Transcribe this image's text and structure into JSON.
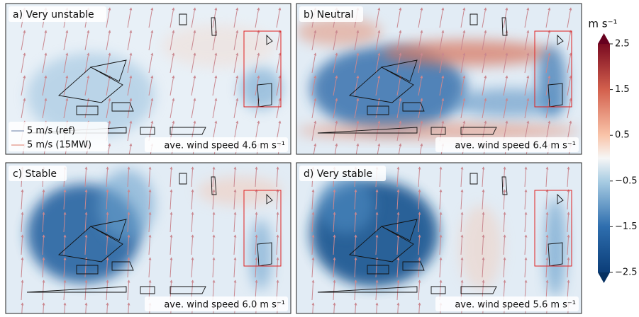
{
  "panels": [
    {
      "title": "a) Very unstable",
      "annotation": "ave. wind speed 4.6 m s⁻¹"
    },
    {
      "title": "b) Neutral",
      "annotation": "ave. wind speed 6.4 m s⁻¹"
    },
    {
      "title": "c) Stable",
      "annotation": "ave. wind speed 6.0 m s⁻¹"
    },
    {
      "title": "d) Very stable",
      "annotation": "ave. wind speed 5.6 m s⁻¹"
    }
  ],
  "legend": [
    "5 m/s (ref)",
    "5 m/s (15MW)"
  ],
  "colorbar": {
    "label": "m s⁻¹",
    "lim": [
      -2.5,
      2.5
    ],
    "ticks": [
      {
        "value": -2.5,
        "label": "−2.5"
      },
      {
        "value": -1.5,
        "label": "−1.5"
      },
      {
        "value": -0.5,
        "label": "−0.5"
      },
      0.5,
      1.5,
      2.5
    ]
  }
}
